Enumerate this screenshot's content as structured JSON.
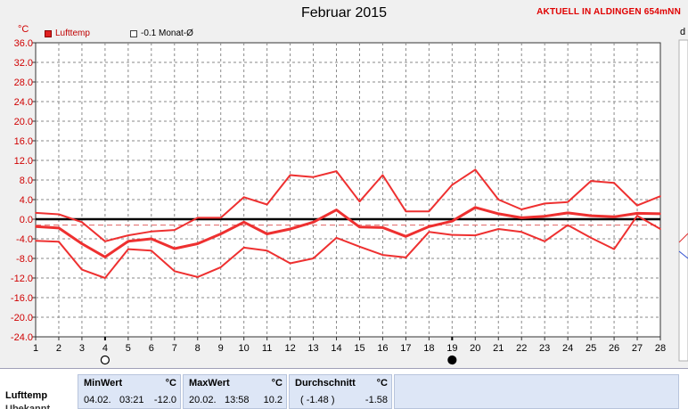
{
  "title": "Februar 2015",
  "status": "AKTUELL IN ALDINGEN 654mNN",
  "cut_text": "d",
  "unit": "°C",
  "legend": [
    {
      "label": "Lufttemp",
      "color": "#e02020",
      "filled": true
    },
    {
      "label": "-0.1 Monat-Ø",
      "color": "#404040",
      "filled": false
    }
  ],
  "chart_data": {
    "type": "line",
    "title": "Februar 2015",
    "ylabel": "°C",
    "ylim": [
      -24,
      36
    ],
    "yticks": [
      "36.0",
      "32.0",
      "28.0",
      "24.0",
      "20.0",
      "16.0",
      "12.0",
      "8.0",
      "4.0",
      "0.0",
      "-4.0",
      "-8.0",
      "-12.0",
      "-16.0",
      "-20.0",
      "-24.0"
    ],
    "x": [
      1,
      2,
      3,
      4,
      5,
      6,
      7,
      8,
      9,
      10,
      11,
      12,
      13,
      14,
      15,
      16,
      17,
      18,
      19,
      20,
      21,
      22,
      23,
      24,
      25,
      26,
      27,
      28
    ],
    "grid": true,
    "month_mean": -0.1,
    "series": [
      {
        "name": "max",
        "values": [
          1.3,
          1.0,
          -0.6,
          -4.5,
          -3.3,
          -2.5,
          -2.2,
          0.3,
          0.3,
          4.5,
          3.0,
          9.0,
          8.6,
          9.8,
          3.6,
          9.0,
          1.6,
          1.6,
          7.0,
          10.1,
          4.0,
          2.0,
          3.2,
          3.5,
          7.8,
          7.4,
          2.8,
          4.7
        ]
      },
      {
        "name": "mean",
        "values": [
          -1.5,
          -1.8,
          -5.0,
          -7.7,
          -4.5,
          -4.0,
          -6.0,
          -5.0,
          -3.0,
          -0.6,
          -3.0,
          -2.0,
          -0.6,
          1.9,
          -1.6,
          -1.7,
          -3.5,
          -1.5,
          -0.4,
          2.4,
          1.1,
          0.3,
          0.6,
          1.3,
          0.7,
          0.5,
          1.2,
          1.1
        ]
      },
      {
        "name": "min",
        "values": [
          -4.4,
          -4.6,
          -10.3,
          -12.0,
          -6.1,
          -6.4,
          -10.6,
          -11.8,
          -9.8,
          -5.8,
          -6.4,
          -9.0,
          -8.0,
          -3.8,
          -5.6,
          -7.3,
          -7.8,
          -2.6,
          -3.2,
          -3.3,
          -2.0,
          -2.6,
          -4.5,
          -1.2,
          -3.8,
          -6.1,
          0.7,
          -2.0
        ]
      }
    ],
    "markers": [
      {
        "day": 4,
        "symbol": "open-circle"
      },
      {
        "day": 19,
        "symbol": "filled-circle"
      }
    ]
  },
  "stats": {
    "row_label": "Lufttemp",
    "row_label2": "Ubekannt",
    "min": {
      "header": "MinWert",
      "unit": "°C",
      "date": "04.02.",
      "time": "03:21",
      "value": "-12.0"
    },
    "max": {
      "header": "MaxWert",
      "unit": "°C",
      "date": "20.02.",
      "time": "13:58",
      "value": "10.2"
    },
    "avg": {
      "header": "Durchschnitt",
      "unit": "°C",
      "value1": "( -1.48 )",
      "value2": "-1.58"
    }
  }
}
